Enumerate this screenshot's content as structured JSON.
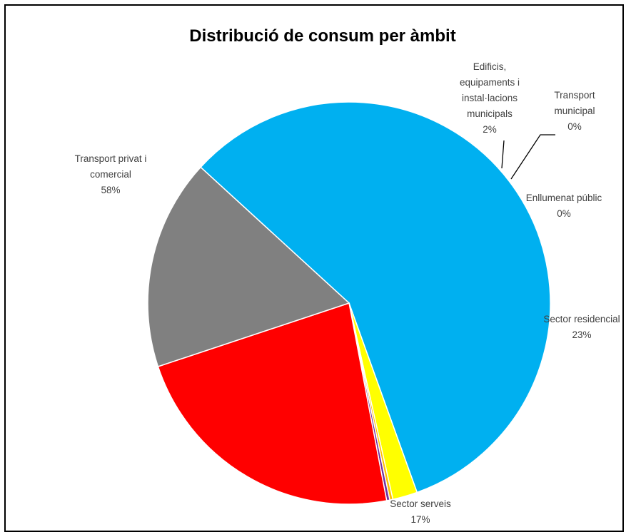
{
  "chart_data": {
    "type": "pie",
    "title": "Distribució de consum per àmbit",
    "slices": [
      {
        "name": "Transport privat i comercial",
        "label_lines": [
          "Transport privat i",
          "comercial"
        ],
        "value": 58,
        "value_label": "58%",
        "color": "#00b0f0"
      },
      {
        "name": "Edificis, equipaments i instal·lacions municipals",
        "label_lines": [
          "Edificis,",
          "equipaments i",
          "instal·lacions",
          "municipals"
        ],
        "value": 2,
        "value_label": "2%",
        "color": "#ffff00"
      },
      {
        "name": "Transport municipal",
        "label_lines": [
          "Transport",
          "municipal"
        ],
        "value": 0,
        "value_label": "0%",
        "color": "#ffc000"
      },
      {
        "name": "Enllumenat públic",
        "label_lines": [
          "Enllumenat públic"
        ],
        "value": 0,
        "value_label": "0%",
        "color": "#7030a0"
      },
      {
        "name": "Sector residencial",
        "label_lines": [
          "Sector residencial"
        ],
        "value": 23,
        "value_label": "23%",
        "color": "#ff0000"
      },
      {
        "name": "Sector serveis",
        "label_lines": [
          "Sector serveis"
        ],
        "value": 17,
        "value_label": "17%",
        "color": "#808080"
      }
    ],
    "legend": "none"
  }
}
